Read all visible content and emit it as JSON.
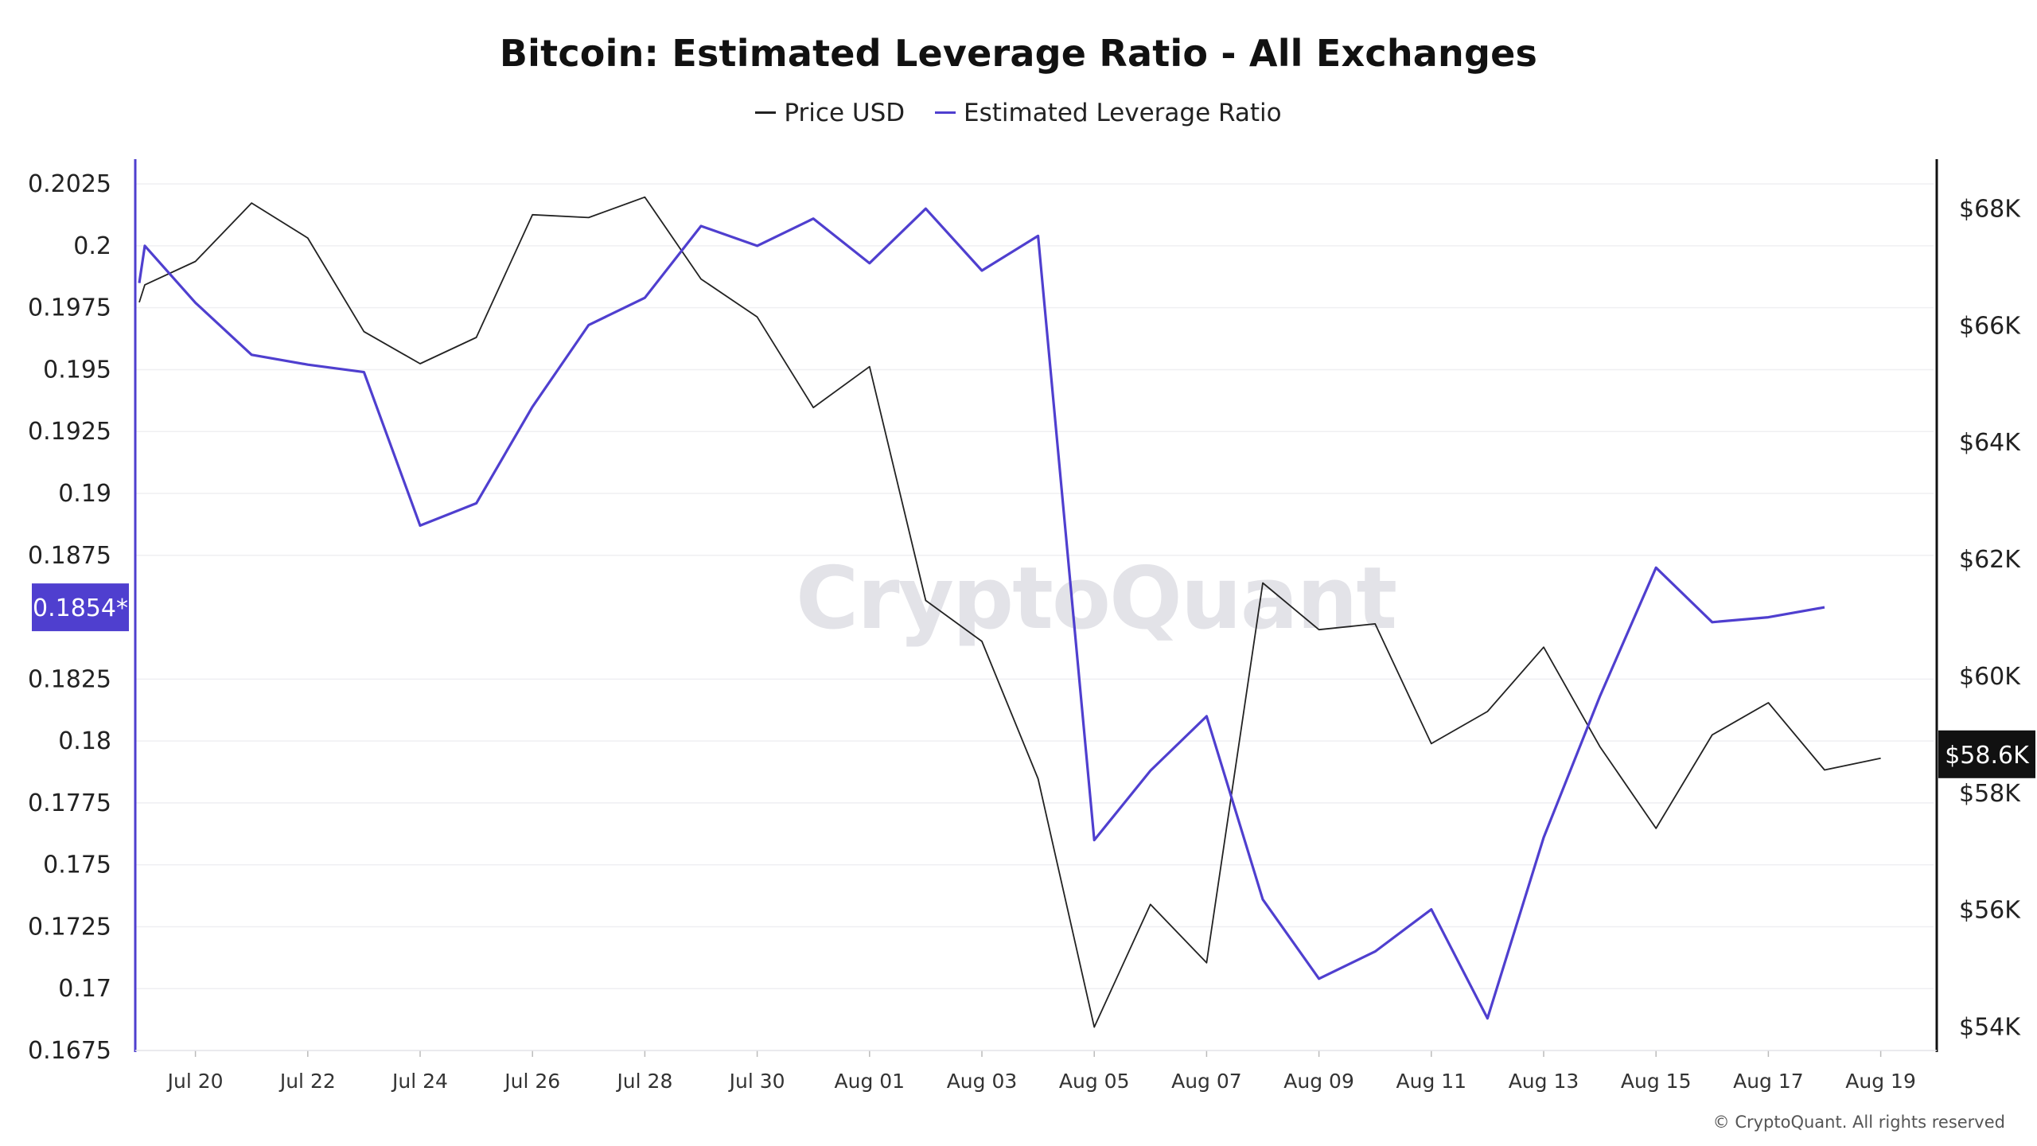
{
  "chart_data": {
    "type": "line",
    "title": "Bitcoin: Estimated Leverage Ratio - All Exchanges",
    "legend": {
      "placement": "top-center",
      "entries": [
        "Price USD",
        "Estimated Leverage Ratio"
      ]
    },
    "grid": true,
    "x_tick_labels": [
      "Jul 20",
      "Jul 22",
      "Jul 24",
      "Jul 26",
      "Jul 28",
      "Jul 30",
      "Aug 01",
      "Aug 03",
      "Aug 05",
      "Aug 07",
      "Aug 09",
      "Aug 11",
      "Aug 13",
      "Aug 15",
      "Aug 17",
      "Aug 19"
    ],
    "x_tick_dates": [
      "2024-07-20",
      "2024-07-22",
      "2024-07-24",
      "2024-07-26",
      "2024-07-28",
      "2024-07-30",
      "2024-08-01",
      "2024-08-03",
      "2024-08-05",
      "2024-08-07",
      "2024-08-09",
      "2024-08-11",
      "2024-08-13",
      "2024-08-15",
      "2024-08-17",
      "2024-08-19"
    ],
    "y_left": {
      "ticks": [
        "0.2025",
        "0.2",
        "0.1975",
        "0.195",
        "0.1925",
        "0.19",
        "0.1875",
        "0.1825",
        "0.18",
        "0.1775",
        "0.175",
        "0.1725",
        "0.17",
        "0.1675"
      ],
      "tick_values": [
        0.2025,
        0.2,
        0.1975,
        0.195,
        0.1925,
        0.19,
        0.1875,
        0.1825,
        0.18,
        0.1775,
        0.175,
        0.1725,
        0.17,
        0.1675
      ],
      "range": [
        0.1675,
        0.2035
      ]
    },
    "y_right": {
      "ticks": [
        "$68K",
        "$66K",
        "$64K",
        "$62K",
        "$60K",
        "$58K",
        "$56K",
        "$54K"
      ],
      "tick_values": [
        68000,
        66000,
        64000,
        62000,
        60000,
        58000,
        56000,
        54000
      ],
      "range": [
        53600,
        68850
      ]
    },
    "current_value_labels": {
      "leverage": "0.1854*",
      "price": "$58.6K"
    },
    "series": [
      {
        "name": "Price USD",
        "axis": "right",
        "color": "#222222",
        "points": [
          [
            "2024-07-19",
            66400
          ],
          [
            "2024-07-19",
            66700
          ],
          [
            "2024-07-20",
            67100
          ],
          [
            "2024-07-21",
            68100
          ],
          [
            "2024-07-22",
            67500
          ],
          [
            "2024-07-23",
            65900
          ],
          [
            "2024-07-24",
            65350
          ],
          [
            "2024-07-25",
            65800
          ],
          [
            "2024-07-26",
            67900
          ],
          [
            "2024-07-27",
            67850
          ],
          [
            "2024-07-28",
            68200
          ],
          [
            "2024-07-29",
            66800
          ],
          [
            "2024-07-30",
            66150
          ],
          [
            "2024-07-31",
            64600
          ],
          [
            "2024-08-01",
            65300
          ],
          [
            "2024-08-02",
            61300
          ],
          [
            "2024-08-03",
            60600
          ],
          [
            "2024-08-04",
            58250
          ],
          [
            "2024-08-05",
            54000
          ],
          [
            "2024-08-06",
            56100
          ],
          [
            "2024-08-07",
            55100
          ],
          [
            "2024-08-08",
            61600
          ],
          [
            "2024-08-09",
            60800
          ],
          [
            "2024-08-10",
            60900
          ],
          [
            "2024-08-11",
            58850
          ],
          [
            "2024-08-12",
            59400
          ],
          [
            "2024-08-13",
            60500
          ],
          [
            "2024-08-14",
            58800
          ],
          [
            "2024-08-15",
            57400
          ],
          [
            "2024-08-16",
            59000
          ],
          [
            "2024-08-17",
            59550
          ],
          [
            "2024-08-18",
            58400
          ],
          [
            "2024-08-19",
            58600
          ]
        ]
      },
      {
        "name": "Estimated Leverage Ratio",
        "axis": "left",
        "color": "#4f3fcf",
        "points": [
          [
            "2024-07-19",
            0.1985
          ],
          [
            "2024-07-19",
            0.2
          ],
          [
            "2024-07-20",
            0.1977
          ],
          [
            "2024-07-21",
            0.1956
          ],
          [
            "2024-07-22",
            0.1952
          ],
          [
            "2024-07-23",
            0.1949
          ],
          [
            "2024-07-24",
            0.1887
          ],
          [
            "2024-07-25",
            0.1896
          ],
          [
            "2024-07-26",
            0.1935
          ],
          [
            "2024-07-27",
            0.1968
          ],
          [
            "2024-07-28",
            0.1979
          ],
          [
            "2024-07-29",
            0.2008
          ],
          [
            "2024-07-30",
            0.2
          ],
          [
            "2024-07-31",
            0.2011
          ],
          [
            "2024-08-01",
            0.1993
          ],
          [
            "2024-08-02",
            0.2015
          ],
          [
            "2024-08-03",
            0.199
          ],
          [
            "2024-08-04",
            0.2004
          ],
          [
            "2024-08-05",
            0.176
          ],
          [
            "2024-08-06",
            0.1788
          ],
          [
            "2024-08-07",
            0.181
          ],
          [
            "2024-08-08",
            0.1736
          ],
          [
            "2024-08-09",
            0.1704
          ],
          [
            "2024-08-10",
            0.1715
          ],
          [
            "2024-08-11",
            0.1732
          ],
          [
            "2024-08-12",
            0.1688
          ],
          [
            "2024-08-13",
            0.1761
          ],
          [
            "2024-08-14",
            0.1818
          ],
          [
            "2024-08-15",
            0.187
          ],
          [
            "2024-08-16",
            0.1848
          ],
          [
            "2024-08-17",
            0.185
          ],
          [
            "2024-08-18",
            0.1854
          ]
        ]
      }
    ]
  },
  "watermark": "CryptoQuant",
  "copyright": "© CryptoQuant. All rights reserved",
  "colors": {
    "leverage": "#4f3fcf",
    "price": "#222222",
    "grid": "#efeff2",
    "badge_price_bg": "#111111"
  }
}
